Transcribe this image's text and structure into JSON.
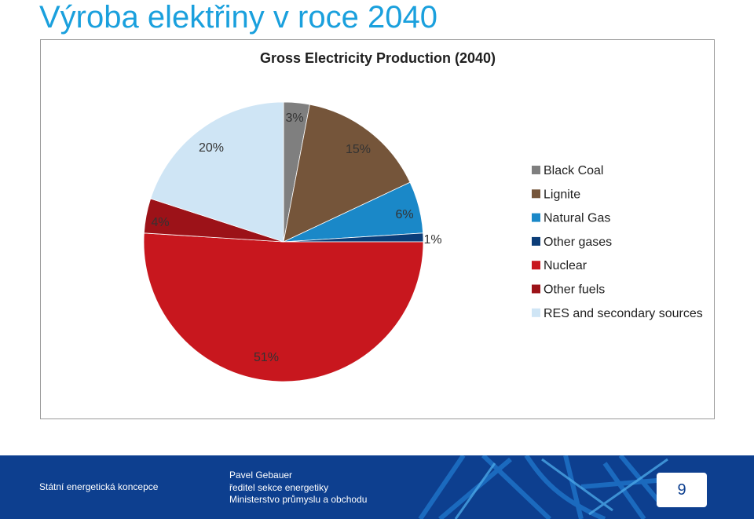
{
  "slide": {
    "title": "Výroba elektřiny v roce 2040"
  },
  "chart_data": {
    "type": "pie",
    "title": "Gross Electricity Production (2040)",
    "legend_position": "right",
    "slices": [
      {
        "label": "Black Coal",
        "value": 3,
        "display": "3%",
        "color": "#7f7f7f"
      },
      {
        "label": "Lignite",
        "value": 15,
        "display": "15%",
        "color": "#75553a"
      },
      {
        "label": "Natural Gas",
        "value": 6,
        "display": "6%",
        "color": "#1a88c8"
      },
      {
        "label": "Other gases",
        "value": 1,
        "display": "1%",
        "color": "#0b3d78"
      },
      {
        "label": "Nuclear",
        "value": 51,
        "display": "51%",
        "color": "#c8171e"
      },
      {
        "label": "Other fuels",
        "value": 4,
        "display": "4%",
        "color": "#9c1218"
      },
      {
        "label": "RES and secondary sources",
        "value": 20,
        "display": "20%",
        "color": "#cfe5f5"
      }
    ]
  },
  "footer": {
    "org": "Státní energetická koncepce",
    "person_lines": [
      "Pavel Gebauer",
      "ředitel sekce energetiky",
      "Ministerstvo  průmyslu a obchodu"
    ],
    "page_number": "9",
    "background_color": "#0d3f8f"
  }
}
